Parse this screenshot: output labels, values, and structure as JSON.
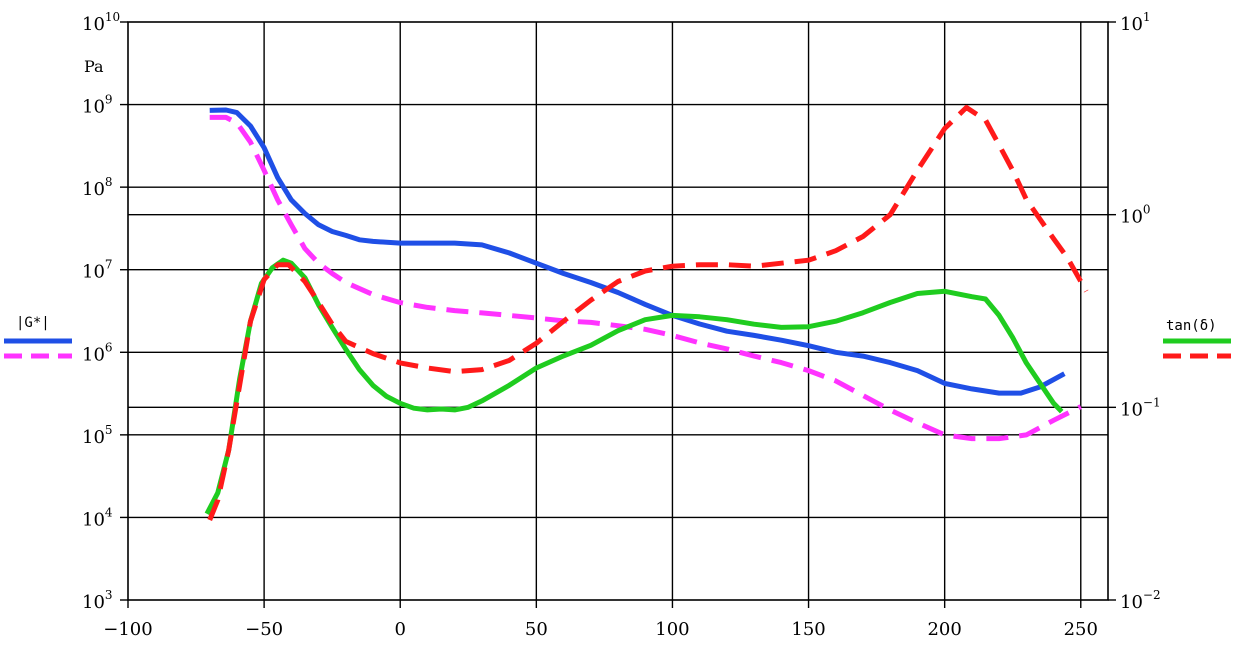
{
  "chart_data": {
    "type": "line",
    "x_ticks": [
      "−100",
      "−50",
      "0",
      "50",
      "100",
      "150",
      "200",
      "250"
    ],
    "xlim": [
      -100,
      260
    ],
    "y_left": {
      "scale": "log",
      "unit": "Pa",
      "range": [
        1000,
        10000000000
      ],
      "ticks": [
        {
          "base": "10",
          "exp": "3"
        },
        {
          "base": "10",
          "exp": "4"
        },
        {
          "base": "10",
          "exp": "5"
        },
        {
          "base": "10",
          "exp": "6"
        },
        {
          "base": "10",
          "exp": "7"
        },
        {
          "base": "10",
          "exp": "8"
        },
        {
          "base": "10",
          "exp": "9"
        },
        {
          "base": "10",
          "exp": "10"
        }
      ]
    },
    "y_right": {
      "scale": "log",
      "range": [
        0.01,
        10
      ],
      "ticks": [
        {
          "base": "10",
          "exp": "−2"
        },
        {
          "base": "10",
          "exp": "−1"
        },
        {
          "base": "10",
          "exp": "0"
        },
        {
          "base": "10",
          "exp": "1"
        }
      ]
    },
    "grid": true,
    "legends": [
      {
        "label": "|G*|",
        "position": "left",
        "series": [
          "G_solid",
          "G_dashed"
        ]
      },
      {
        "label": "tan(δ)",
        "position": "right",
        "series": [
          "tan_solid",
          "tan_dashed"
        ]
      }
    ],
    "series": [
      {
        "id": "G_solid",
        "axis": "left",
        "color": "#1f4fe6",
        "style": "solid",
        "points": [
          [
            -70,
            850000000.0
          ],
          [
            -64,
            860000000.0
          ],
          [
            -60,
            800000000.0
          ],
          [
            -55,
            550000000.0
          ],
          [
            -50,
            300000000.0
          ],
          [
            -45,
            130000000.0
          ],
          [
            -40,
            70000000.0
          ],
          [
            -35,
            48000000.0
          ],
          [
            -30,
            35000000.0
          ],
          [
            -25,
            29000000.0
          ],
          [
            -20,
            26000000.0
          ],
          [
            -15,
            23000000.0
          ],
          [
            -10,
            22000000.0
          ],
          [
            0,
            21000000.0
          ],
          [
            10,
            21000000.0
          ],
          [
            20,
            21000000.0
          ],
          [
            30,
            20000000.0
          ],
          [
            40,
            16000000.0
          ],
          [
            50,
            12000000.0
          ],
          [
            60,
            9000000.0
          ],
          [
            70,
            7000000.0
          ],
          [
            80,
            5300000.0
          ],
          [
            90,
            3800000.0
          ],
          [
            100,
            2800000.0
          ],
          [
            110,
            2200000.0
          ],
          [
            120,
            1800000.0
          ],
          [
            130,
            1600000.0
          ],
          [
            140,
            1400000.0
          ],
          [
            150,
            1200000.0
          ],
          [
            160,
            1000000.0
          ],
          [
            170,
            900000.0
          ],
          [
            180,
            750000.0
          ],
          [
            190,
            600000.0
          ],
          [
            200,
            420000.0
          ],
          [
            210,
            360000.0
          ],
          [
            220,
            320000.0
          ],
          [
            228,
            320000.0
          ],
          [
            235,
            380000.0
          ],
          [
            244,
            550000.0
          ]
        ]
      },
      {
        "id": "G_dashed",
        "axis": "left",
        "color": "#ff33ff",
        "style": "dashed",
        "points": [
          [
            -70,
            700000000.0
          ],
          [
            -64,
            700000000.0
          ],
          [
            -60,
            600000000.0
          ],
          [
            -55,
            350000000.0
          ],
          [
            -50,
            160000000.0
          ],
          [
            -45,
            70000000.0
          ],
          [
            -40,
            35000000.0
          ],
          [
            -35,
            18000000.0
          ],
          [
            -30,
            12000000.0
          ],
          [
            -25,
            9000000.0
          ],
          [
            -20,
            7000000.0
          ],
          [
            -10,
            5000000.0
          ],
          [
            0,
            4000000.0
          ],
          [
            10,
            3500000.0
          ],
          [
            20,
            3200000.0
          ],
          [
            30,
            3000000.0
          ],
          [
            40,
            2800000.0
          ],
          [
            50,
            2600000.0
          ],
          [
            60,
            2400000.0
          ],
          [
            70,
            2300000.0
          ],
          [
            80,
            2100000.0
          ],
          [
            90,
            1900000.0
          ],
          [
            100,
            1600000.0
          ],
          [
            110,
            1300000.0
          ],
          [
            120,
            1100000.0
          ],
          [
            130,
            900000.0
          ],
          [
            140,
            750000.0
          ],
          [
            150,
            600000.0
          ],
          [
            160,
            450000.0
          ],
          [
            170,
            300000.0
          ],
          [
            180,
            200000.0
          ],
          [
            190,
            140000.0
          ],
          [
            200,
            100000.0
          ],
          [
            210,
            90000.0
          ],
          [
            220,
            90000.0
          ],
          [
            230,
            100000.0
          ],
          [
            240,
            150000.0
          ],
          [
            250,
            220000.0
          ]
        ]
      },
      {
        "id": "tan_solid",
        "axis": "right",
        "color": "#1fcc1f",
        "style": "solid",
        "points": [
          [
            -71,
            0.028
          ],
          [
            -67,
            0.036
          ],
          [
            -63,
            0.06
          ],
          [
            -59,
            0.14
          ],
          [
            -55,
            0.28
          ],
          [
            -51,
            0.44
          ],
          [
            -47,
            0.53
          ],
          [
            -43,
            0.58
          ],
          [
            -40,
            0.56
          ],
          [
            -35,
            0.47
          ],
          [
            -30,
            0.34
          ],
          [
            -25,
            0.26
          ],
          [
            -20,
            0.2
          ],
          [
            -15,
            0.157
          ],
          [
            -10,
            0.13
          ],
          [
            -5,
            0.114
          ],
          [
            0,
            0.105
          ],
          [
            5,
            0.099
          ],
          [
            10,
            0.097
          ],
          [
            15,
            0.098
          ],
          [
            20,
            0.097
          ],
          [
            25,
            0.1
          ],
          [
            30,
            0.108
          ],
          [
            40,
            0.13
          ],
          [
            50,
            0.16
          ],
          [
            60,
            0.185
          ],
          [
            70,
            0.21
          ],
          [
            80,
            0.25
          ],
          [
            90,
            0.285
          ],
          [
            100,
            0.3
          ],
          [
            110,
            0.295
          ],
          [
            120,
            0.285
          ],
          [
            130,
            0.27
          ],
          [
            140,
            0.26
          ],
          [
            150,
            0.262
          ],
          [
            160,
            0.28
          ],
          [
            170,
            0.31
          ],
          [
            180,
            0.35
          ],
          [
            190,
            0.39
          ],
          [
            200,
            0.4
          ],
          [
            210,
            0.375
          ],
          [
            215,
            0.365
          ],
          [
            220,
            0.3
          ],
          [
            225,
            0.23
          ],
          [
            230,
            0.17
          ],
          [
            240,
            0.105
          ],
          [
            243,
            0.095
          ]
        ]
      },
      {
        "id": "tan_dashed",
        "axis": "right",
        "color": "#ff1a1a",
        "style": "dashed",
        "points": [
          [
            -70,
            0.026
          ],
          [
            -67,
            0.033
          ],
          [
            -63,
            0.06
          ],
          [
            -59,
            0.13
          ],
          [
            -55,
            0.28
          ],
          [
            -50,
            0.46
          ],
          [
            -45,
            0.55
          ],
          [
            -41,
            0.55
          ],
          [
            -35,
            0.45
          ],
          [
            -30,
            0.35
          ],
          [
            -25,
            0.27
          ],
          [
            -20,
            0.22
          ],
          [
            -10,
            0.19
          ],
          [
            0,
            0.17
          ],
          [
            10,
            0.16
          ],
          [
            20,
            0.153
          ],
          [
            30,
            0.157
          ],
          [
            40,
            0.175
          ],
          [
            50,
            0.215
          ],
          [
            60,
            0.28
          ],
          [
            70,
            0.36
          ],
          [
            80,
            0.45
          ],
          [
            90,
            0.51
          ],
          [
            100,
            0.54
          ],
          [
            110,
            0.55
          ],
          [
            120,
            0.55
          ],
          [
            130,
            0.54
          ],
          [
            140,
            0.56
          ],
          [
            150,
            0.58
          ],
          [
            160,
            0.65
          ],
          [
            170,
            0.77
          ],
          [
            180,
            1.0
          ],
          [
            190,
            1.7
          ],
          [
            200,
            2.8
          ],
          [
            208,
            3.6
          ],
          [
            215,
            3.1
          ],
          [
            220,
            2.3
          ],
          [
            225,
            1.7
          ],
          [
            230,
            1.2
          ],
          [
            235,
            0.95
          ],
          [
            240,
            0.75
          ],
          [
            245,
            0.6
          ],
          [
            250,
            0.45
          ],
          [
            252,
            0.4
          ]
        ]
      }
    ]
  }
}
